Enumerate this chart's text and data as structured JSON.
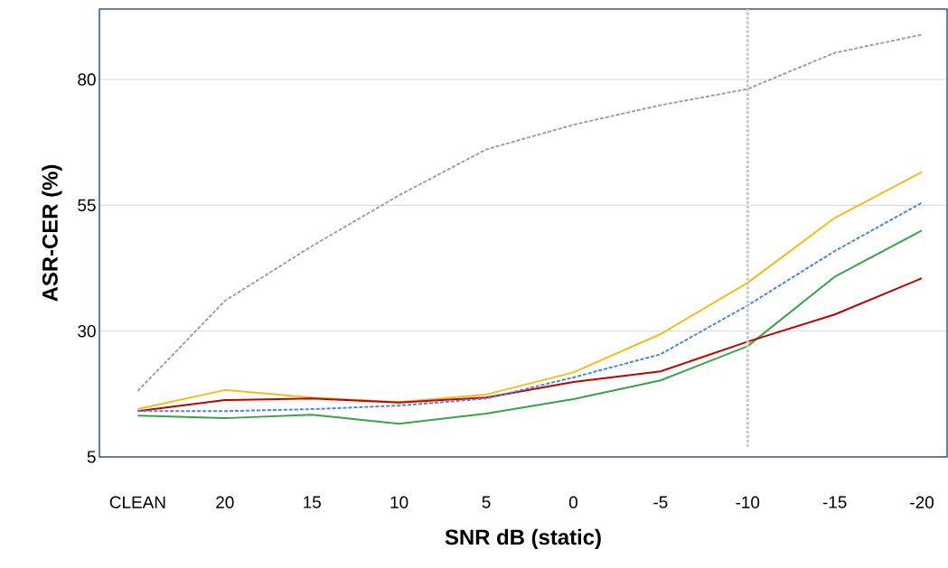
{
  "chart_data": {
    "type": "line",
    "xlabel": "SNR dB (static)",
    "ylabel": "ASR-CER (%)",
    "categories": [
      "CLEAN",
      "20",
      "15",
      "10",
      "5",
      "0",
      "-5",
      "-10",
      "-15",
      "-20"
    ],
    "series": [
      {
        "color": "#a0a0a0",
        "line_style": "dashed",
        "values": [
          18.1,
          36.0,
          46.9,
          57.0,
          66.1,
          71.0,
          74.9,
          78.1,
          85.3,
          88.9
        ]
      },
      {
        "color": "#f5bc1c",
        "line_style": "solid",
        "values": [
          14.5,
          18.3,
          16.8,
          15.9,
          17.4,
          21.8,
          29.4,
          39.6,
          52.5,
          61.6
        ]
      },
      {
        "color": "#4a86e8",
        "line_style": "dashed",
        "values": [
          14.1,
          14.1,
          14.5,
          15.2,
          16.6,
          20.8,
          25.4,
          35.1,
          45.9,
          55.5
        ]
      },
      {
        "color": "#3aa34a",
        "line_style": "solid",
        "values": [
          13.2,
          12.7,
          13.4,
          11.6,
          13.6,
          16.5,
          20.2,
          27.0,
          40.8,
          50.0
        ]
      },
      {
        "color": "#c00000",
        "line_style": "solid",
        "values": [
          14.1,
          16.3,
          16.6,
          15.8,
          16.8,
          19.9,
          22.0,
          27.9,
          33.3,
          40.5
        ]
      }
    ],
    "ylim": [
      5,
      94
    ],
    "yticks": [
      5,
      30,
      55,
      80
    ],
    "grid": "y",
    "ref_lines": [
      {
        "axis": "x",
        "value": "-10",
        "color": "#c8c8c8",
        "line_style": "dotted"
      }
    ]
  }
}
